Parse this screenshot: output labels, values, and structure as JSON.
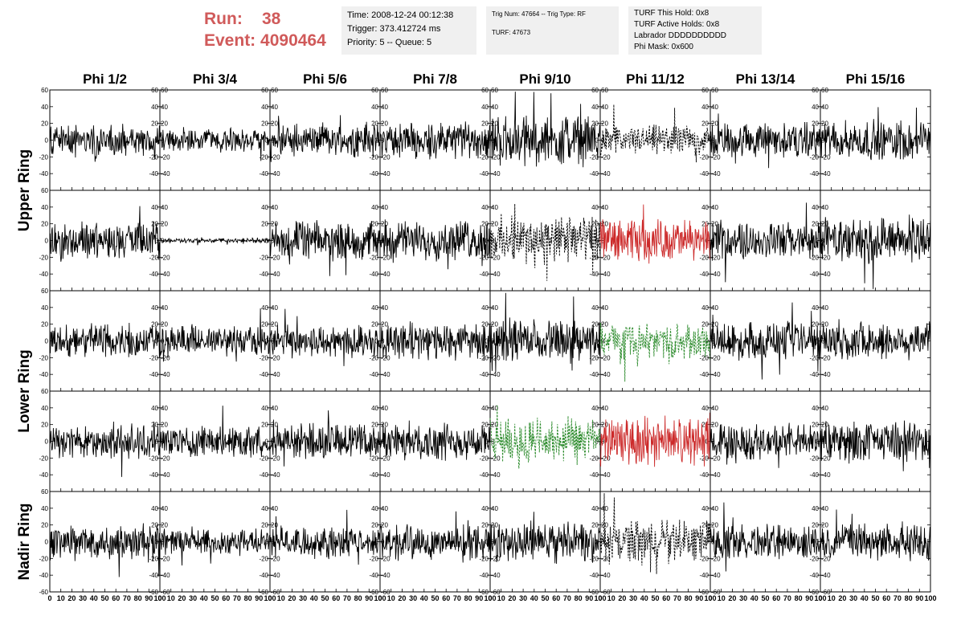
{
  "header": {
    "run_label": "Run:",
    "run_value": "38",
    "event_label": "Event:",
    "event_value": "4090464",
    "box1": [
      "Time: 2008-12-24 00:12:38",
      "Trigger: 373.412724 ms",
      "Priority: 5 -- Queue: 5"
    ],
    "box2": [
      "Trig Num: 47664 -- Trig Type: RF",
      "TURF: 47673"
    ],
    "box3": [
      "TURF This Hold: 0x8",
      "TURF Active Holds: 0x8",
      "Labrador DDDDDDDDDD",
      "Phi Mask: 0x600"
    ]
  },
  "chart_data": {
    "type": "line",
    "column_titles": [
      "Phi 1/2",
      "Phi 3/4",
      "Phi 5/6",
      "Phi 7/8",
      "Phi 9/10",
      "Phi 11/12",
      "Phi 13/14",
      "Phi 15/16"
    ],
    "ring_labels": [
      "Upper Ring",
      "Lower Ring",
      "Nadir Ring"
    ],
    "xlim": [
      0,
      100
    ],
    "ylim": [
      -60,
      60
    ],
    "x_ticks": [
      0,
      10,
      20,
      30,
      40,
      50,
      60,
      70,
      80,
      90,
      100
    ],
    "y_ticks": [
      -60,
      -40,
      -20,
      0,
      20,
      40,
      60
    ],
    "y_tick_labels": [
      "-60",
      "-40",
      "-20",
      "0",
      "20",
      "40",
      "60"
    ],
    "x_tick_labels": [
      "0",
      "10",
      "20",
      "30",
      "40",
      "50",
      "60",
      "70",
      "80",
      "90",
      "100"
    ],
    "colors": {
      "normal": "#000000",
      "red": "#cc2a2a",
      "green": "#2a8a2a"
    },
    "rows": [
      [
        {
          "amp": 14,
          "style": "solid",
          "color": "normal"
        },
        {
          "amp": 10,
          "style": "solid",
          "color": "normal"
        },
        {
          "amp": 13,
          "style": "solid",
          "color": "normal"
        },
        {
          "amp": 15,
          "style": "solid",
          "color": "normal"
        },
        {
          "amp": 20,
          "style": "solid",
          "color": "normal"
        },
        {
          "amp": 12,
          "style": "dashed",
          "color": "normal"
        },
        {
          "amp": 14,
          "style": "solid",
          "color": "normal"
        },
        {
          "amp": 16,
          "style": "solid",
          "color": "normal"
        }
      ],
      [
        {
          "amp": 15,
          "style": "solid",
          "color": "normal"
        },
        {
          "amp": 2,
          "style": "solid",
          "color": "normal"
        },
        {
          "amp": 15,
          "style": "solid",
          "color": "normal"
        },
        {
          "amp": 16,
          "style": "solid",
          "color": "normal"
        },
        {
          "amp": 20,
          "style": "dashed",
          "color": "normal"
        },
        {
          "amp": 17,
          "style": "solid",
          "color": "red"
        },
        {
          "amp": 15,
          "style": "solid",
          "color": "normal"
        },
        {
          "amp": 18,
          "style": "solid",
          "color": "normal"
        }
      ],
      [
        {
          "amp": 14,
          "style": "solid",
          "color": "normal"
        },
        {
          "amp": 12,
          "style": "solid",
          "color": "normal"
        },
        {
          "amp": 13,
          "style": "solid",
          "color": "normal"
        },
        {
          "amp": 15,
          "style": "solid",
          "color": "normal"
        },
        {
          "amp": 17,
          "style": "solid",
          "color": "normal"
        },
        {
          "amp": 14,
          "style": "dashed",
          "color": "green"
        },
        {
          "amp": 15,
          "style": "solid",
          "color": "normal"
        },
        {
          "amp": 16,
          "style": "solid",
          "color": "normal"
        }
      ],
      [
        {
          "amp": 14,
          "style": "solid",
          "color": "normal"
        },
        {
          "amp": 13,
          "style": "solid",
          "color": "normal"
        },
        {
          "amp": 14,
          "style": "solid",
          "color": "normal"
        },
        {
          "amp": 15,
          "style": "solid",
          "color": "normal"
        },
        {
          "amp": 18,
          "style": "dashed",
          "color": "green"
        },
        {
          "amp": 20,
          "style": "solid",
          "color": "red"
        },
        {
          "amp": 14,
          "style": "solid",
          "color": "normal"
        },
        {
          "amp": 16,
          "style": "solid",
          "color": "normal"
        }
      ],
      [
        {
          "amp": 15,
          "style": "solid",
          "color": "normal"
        },
        {
          "amp": 10,
          "style": "solid",
          "color": "normal"
        },
        {
          "amp": 13,
          "style": "solid",
          "color": "normal"
        },
        {
          "amp": 14,
          "style": "solid",
          "color": "normal"
        },
        {
          "amp": 16,
          "style": "solid",
          "color": "normal"
        },
        {
          "amp": 17,
          "style": "dashed",
          "color": "normal"
        },
        {
          "amp": 14,
          "style": "solid",
          "color": "normal"
        },
        {
          "amp": 15,
          "style": "solid",
          "color": "normal"
        }
      ]
    ]
  }
}
